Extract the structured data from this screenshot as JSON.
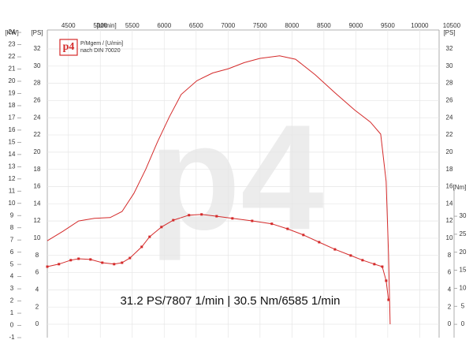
{
  "chart_data": {
    "type": "line",
    "x_unit": "[U/min]",
    "y_unit": "[PS]",
    "y3_unit": "[KW]",
    "y2_unit": "[Nm]",
    "legend_lines": [
      "P/Mgem / [U/min]",
      "nach DIN 70020"
    ],
    "logo": "p4",
    "watermark": "p4",
    "annotation": "31.2 PS/7807 1/min | 30.5 Nm/6585 1/min",
    "xlim": [
      4170,
      10600
    ],
    "xticks": [
      4500,
      5000,
      5500,
      6000,
      6500,
      7000,
      7500,
      8000,
      8500,
      9000,
      9500,
      10000,
      10500
    ],
    "ylim": [
      -1.56,
      34.2
    ],
    "yticks": [
      0,
      2,
      4,
      6,
      8,
      10,
      12,
      14,
      16,
      18,
      20,
      22,
      24,
      26,
      28,
      30,
      32
    ],
    "y3lim": [
      -1,
      24.2
    ],
    "y3ticks": [
      -1,
      0,
      1,
      2,
      3,
      4,
      5,
      6,
      7,
      8,
      9,
      10,
      11,
      12,
      13,
      14,
      15,
      16,
      17,
      18,
      19,
      20,
      21,
      22,
      23,
      24
    ],
    "y2lim": [
      -3.7,
      37.9
    ],
    "y2ticks": [
      0,
      5,
      10,
      15,
      20,
      25,
      30
    ],
    "grid": true,
    "series": [
      {
        "color": "#d42a2a",
        "axis": "y",
        "markers": false,
        "x": [
          4170,
          4414,
          4660,
          4907,
          5154,
          5340,
          5525,
          5710,
          5895,
          6080,
          6265,
          6512,
          6759,
          7006,
          7253,
          7500,
          7807,
          8056,
          8364,
          8673,
          8981,
          9228,
          9389,
          9475,
          9512,
          9537
        ],
        "values": [
          9.7,
          10.8,
          12.0,
          12.3,
          12.4,
          13.1,
          15.2,
          18.0,
          21.2,
          24.1,
          26.7,
          28.3,
          29.2,
          29.7,
          30.4,
          30.9,
          31.2,
          30.8,
          29.0,
          26.9,
          24.9,
          23.5,
          22.1,
          16.6,
          8.3,
          0
        ]
      },
      {
        "color": "#d42a2a",
        "axis": "y2",
        "markers": true,
        "x": [
          4170,
          4352,
          4537,
          4660,
          4846,
          5031,
          5216,
          5340,
          5463,
          5648,
          5772,
          5957,
          6142,
          6388,
          6585,
          6821,
          7068,
          7377,
          7685,
          7932,
          8179,
          8426,
          8673,
          8920,
          9105,
          9290,
          9414,
          9475,
          9512
        ],
        "values": [
          16.0,
          16.7,
          17.8,
          18.2,
          18.0,
          17.1,
          16.7,
          17.1,
          18.4,
          21.5,
          24.3,
          27.0,
          28.9,
          30.3,
          30.5,
          30.0,
          29.4,
          28.7,
          27.9,
          26.5,
          24.8,
          22.8,
          20.8,
          19.1,
          17.8,
          16.7,
          16.0,
          12.1,
          6.8
        ]
      }
    ]
  }
}
